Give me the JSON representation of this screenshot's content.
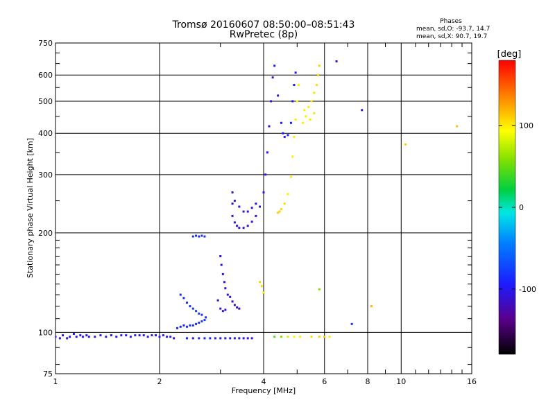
{
  "title": {
    "line1": "Tromsø 20160607 08:50:00–08:51:43",
    "line2": "RwPretec (8p)"
  },
  "phases_box": {
    "heading": "Phases",
    "line_o": "mean, sd,O: -93.7, 14.7",
    "line_x": "mean, sd,X:  90.7, 19.7"
  },
  "colorbar": {
    "label": "[deg]",
    "ticks": [
      {
        "value": 100,
        "label": "100"
      },
      {
        "value": 0,
        "label": "0"
      },
      {
        "value": -100,
        "label": "-100"
      }
    ],
    "range": [
      -180,
      180
    ]
  },
  "chart_data": {
    "type": "scatter",
    "xlabel": "Frequency [MHz]",
    "ylabel": "Stationary phase Virtual Height [km]",
    "x_scale": "log2",
    "y_scale": "log",
    "xlim": [
      1,
      16
    ],
    "ylim": [
      75,
      750
    ],
    "x_ticks": [
      {
        "value": 1,
        "label": "1"
      },
      {
        "value": 2,
        "label": "2"
      },
      {
        "value": 4,
        "label": "4"
      },
      {
        "value": 6,
        "label": "6"
      },
      {
        "value": 8,
        "label": "8"
      },
      {
        "value": 10,
        "label": "10"
      },
      {
        "value": 16,
        "label": "16"
      }
    ],
    "y_ticks": [
      {
        "value": 75,
        "label": "75"
      },
      {
        "value": 100,
        "label": "100"
      },
      {
        "value": 200,
        "label": "200"
      },
      {
        "value": 300,
        "label": "300"
      },
      {
        "value": 400,
        "label": "400"
      },
      {
        "value": 500,
        "label": "500"
      },
      {
        "value": 600,
        "label": "600"
      },
      {
        "value": 750,
        "label": "750"
      }
    ],
    "grid": true,
    "color_by": "phase [deg]",
    "series": [
      {
        "points": [
          [
            1.0,
            97,
            -100
          ],
          [
            1.03,
            96,
            -100
          ],
          [
            1.05,
            98,
            -100
          ],
          [
            1.08,
            96,
            -105
          ],
          [
            1.1,
            97,
            -100
          ],
          [
            1.13,
            99,
            -100
          ],
          [
            1.15,
            97,
            -100
          ],
          [
            1.18,
            98,
            -95
          ],
          [
            1.2,
            97,
            -100
          ],
          [
            1.23,
            98,
            -100
          ],
          [
            1.25,
            97,
            -100
          ],
          [
            1.3,
            97,
            -100
          ],
          [
            1.35,
            98,
            -100
          ],
          [
            1.4,
            97,
            -100
          ],
          [
            1.45,
            98,
            -100
          ],
          [
            1.5,
            97,
            -100
          ],
          [
            1.55,
            98,
            -100
          ],
          [
            1.6,
            98,
            -100
          ],
          [
            1.65,
            97,
            -100
          ],
          [
            1.7,
            98,
            -100
          ],
          [
            1.75,
            98,
            -100
          ],
          [
            1.8,
            98,
            -100
          ],
          [
            1.85,
            97,
            -100
          ],
          [
            1.9,
            98,
            -100
          ],
          [
            1.95,
            98,
            -100
          ],
          [
            2.0,
            97,
            -100
          ],
          [
            2.05,
            98,
            -100
          ],
          [
            2.1,
            97,
            -95
          ],
          [
            2.15,
            97,
            -100
          ],
          [
            2.2,
            96,
            -110
          ]
        ]
      },
      {
        "points": [
          [
            2.25,
            103,
            -90
          ],
          [
            2.3,
            104,
            -90
          ],
          [
            2.35,
            105,
            -90
          ],
          [
            2.4,
            104,
            -85
          ],
          [
            2.45,
            105,
            -85
          ],
          [
            2.5,
            105,
            -85
          ],
          [
            2.55,
            106,
            -85
          ],
          [
            2.6,
            107,
            -85
          ],
          [
            2.65,
            108,
            -80
          ],
          [
            2.7,
            109,
            -80
          ],
          [
            2.72,
            111,
            -80
          ],
          [
            2.3,
            130,
            -85
          ],
          [
            2.35,
            127,
            -85
          ],
          [
            2.4,
            123,
            -85
          ],
          [
            2.45,
            120,
            -85
          ],
          [
            2.5,
            118,
            -80
          ],
          [
            2.55,
            116,
            -80
          ],
          [
            2.6,
            114,
            -80
          ],
          [
            2.65,
            113,
            -80
          ]
        ]
      },
      {
        "points": [
          [
            2.4,
            96,
            -95
          ],
          [
            2.5,
            96,
            -95
          ],
          [
            2.6,
            96,
            -90
          ],
          [
            2.7,
            96,
            -90
          ],
          [
            2.8,
            96,
            -90
          ],
          [
            2.9,
            96,
            -95
          ],
          [
            3.0,
            96,
            -95
          ],
          [
            3.1,
            96,
            -100
          ],
          [
            3.2,
            96,
            -100
          ],
          [
            3.3,
            96,
            -100
          ],
          [
            3.4,
            96,
            -100
          ],
          [
            3.5,
            96,
            -100
          ],
          [
            3.6,
            96,
            -105
          ],
          [
            3.7,
            96,
            -105
          ]
        ]
      },
      {
        "points": [
          [
            2.5,
            195,
            -85
          ],
          [
            2.55,
            196,
            -85
          ],
          [
            2.6,
            195,
            -85
          ],
          [
            2.65,
            196,
            -80
          ],
          [
            2.7,
            195,
            -80
          ]
        ]
      },
      {
        "points": [
          [
            3.0,
            170,
            -110
          ],
          [
            3.02,
            160,
            -110
          ],
          [
            3.05,
            150,
            -110
          ],
          [
            3.08,
            142,
            -110
          ],
          [
            3.1,
            136,
            -110
          ],
          [
            3.15,
            130,
            -110
          ],
          [
            3.2,
            128,
            -110
          ],
          [
            3.25,
            124,
            -115
          ],
          [
            3.3,
            121,
            -115
          ],
          [
            3.35,
            119,
            -115
          ],
          [
            3.4,
            118,
            -115
          ],
          [
            2.95,
            125,
            -110
          ],
          [
            3.0,
            118,
            -110
          ],
          [
            3.05,
            116,
            -115
          ],
          [
            3.1,
            117,
            -115
          ]
        ]
      },
      {
        "points": [
          [
            3.25,
            265,
            -110
          ],
          [
            3.25,
            245,
            -110
          ],
          [
            3.25,
            225,
            -110
          ],
          [
            3.3,
            215,
            -110
          ],
          [
            3.35,
            210,
            -110
          ],
          [
            3.4,
            207,
            -110
          ],
          [
            3.5,
            207,
            -110
          ],
          [
            3.6,
            210,
            -105
          ],
          [
            3.7,
            216,
            -105
          ],
          [
            3.8,
            225,
            -105
          ],
          [
            3.9,
            240,
            -100
          ],
          [
            4.0,
            265,
            -100
          ],
          [
            4.05,
            300,
            -100
          ],
          [
            4.1,
            350,
            -100
          ],
          [
            4.15,
            420,
            -100
          ],
          [
            4.2,
            500,
            -100
          ],
          [
            4.25,
            590,
            -100
          ],
          [
            4.3,
            640,
            -95
          ],
          [
            3.3,
            250,
            -110
          ],
          [
            3.4,
            240,
            -110
          ],
          [
            3.5,
            232,
            -110
          ],
          [
            3.6,
            232,
            -105
          ],
          [
            3.7,
            238,
            -105
          ],
          [
            3.8,
            245,
            -105
          ]
        ]
      },
      {
        "points": [
          [
            4.4,
            520,
            -95
          ],
          [
            4.5,
            430,
            -95
          ],
          [
            4.55,
            400,
            -95
          ],
          [
            4.6,
            390,
            -95
          ],
          [
            4.7,
            395,
            -95
          ],
          [
            4.8,
            430,
            -95
          ],
          [
            4.85,
            500,
            -95
          ],
          [
            4.9,
            560,
            -95
          ],
          [
            4.95,
            610,
            -95
          ]
        ]
      },
      {
        "points": [
          [
            4.4,
            230,
            110
          ],
          [
            4.45,
            232,
            110
          ],
          [
            4.5,
            236,
            105
          ],
          [
            4.6,
            245,
            105
          ],
          [
            4.7,
            262,
            100
          ],
          [
            4.8,
            295,
            100
          ],
          [
            4.85,
            340,
            100
          ],
          [
            4.9,
            390,
            100
          ],
          [
            4.95,
            440,
            100
          ],
          [
            5.0,
            500,
            95
          ],
          [
            5.05,
            560,
            100
          ],
          [
            3.9,
            142,
            110
          ],
          [
            3.95,
            138,
            110
          ],
          [
            4.0,
            132,
            100
          ]
        ]
      },
      {
        "points": [
          [
            5.2,
            430,
            100
          ],
          [
            5.3,
            450,
            100
          ],
          [
            5.4,
            480,
            100
          ],
          [
            5.5,
            500,
            100
          ],
          [
            5.6,
            530,
            105
          ],
          [
            5.7,
            560,
            105
          ],
          [
            5.75,
            600,
            110
          ],
          [
            5.8,
            640,
            110
          ],
          [
            5.25,
            470,
            100
          ],
          [
            5.45,
            440,
            100
          ],
          [
            5.6,
            460,
            105
          ]
        ]
      },
      {
        "points": [
          [
            4.3,
            97,
            45
          ],
          [
            4.5,
            97,
            60
          ],
          [
            4.7,
            97,
            80
          ],
          [
            4.9,
            97,
            95
          ],
          [
            5.1,
            97,
            100
          ],
          [
            5.5,
            97,
            105
          ],
          [
            5.8,
            97,
            110
          ],
          [
            6.0,
            97,
            115
          ],
          [
            6.2,
            97,
            100
          ]
        ]
      },
      {
        "points": [
          [
            6.5,
            660,
            -110
          ],
          [
            7.7,
            470,
            -110
          ],
          [
            8.2,
            120,
            120
          ],
          [
            10.3,
            370,
            110
          ],
          [
            14.5,
            420,
            115
          ],
          [
            5.8,
            135,
            60
          ],
          [
            7.2,
            106,
            -80
          ]
        ]
      }
    ]
  }
}
